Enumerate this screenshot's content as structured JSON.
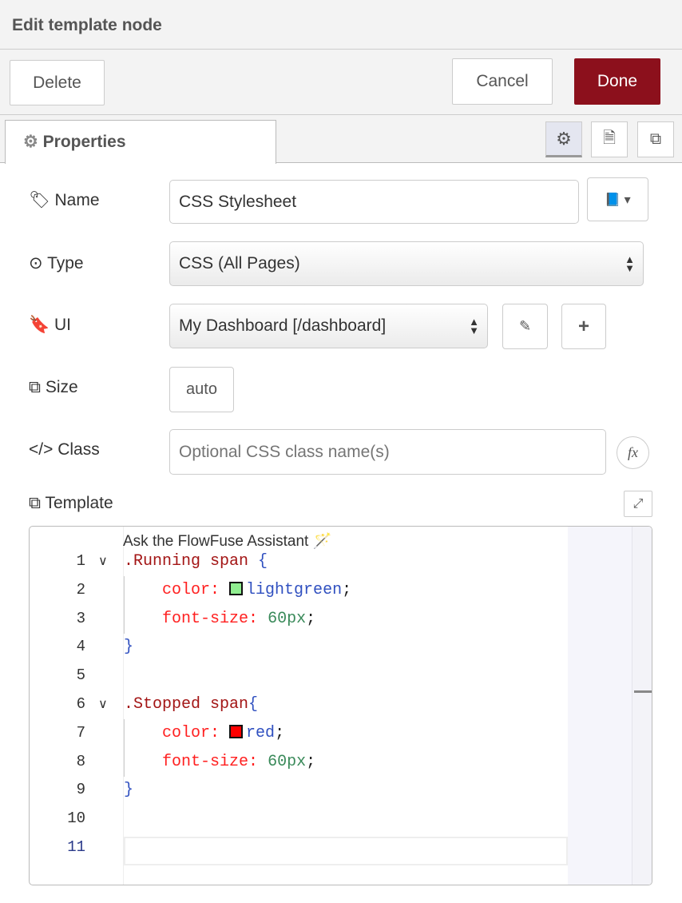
{
  "header": {
    "title": "Edit template node"
  },
  "toolbar": {
    "delete": "Delete",
    "cancel": "Cancel",
    "done": "Done"
  },
  "tabs": {
    "properties": "Properties"
  },
  "form": {
    "name_label": "Name",
    "name_value": "CSS Stylesheet",
    "type_label": "Type",
    "type_value": "CSS (All Pages)",
    "ui_label": "UI",
    "ui_value": "My Dashboard [/dashboard]",
    "size_label": "Size",
    "size_value": "auto",
    "class_label": "Class",
    "class_placeholder": "Optional CSS class name(s)",
    "template_label": "Template"
  },
  "editor": {
    "assistant": "Ask the FlowFuse Assistant",
    "line_numbers": [
      "1",
      "2",
      "3",
      "4",
      "5",
      "6",
      "7",
      "8",
      "9",
      "10",
      "11"
    ],
    "lines": [
      {
        "sel": ".Running span",
        "brace": " {"
      },
      {
        "prop": "color:",
        "swatch": "#90ee90",
        "val": "lightgreen",
        "end": ";"
      },
      {
        "prop": "font-size:",
        "num": "60px",
        "end": ";"
      },
      {
        "brace": "}"
      },
      {},
      {
        "sel": ".Stopped span",
        "brace": "{"
      },
      {
        "prop": "color:",
        "swatch": "#ff0000",
        "val": "red",
        "end": ";"
      },
      {
        "prop": "font-size:",
        "num": "60px",
        "end": ";"
      },
      {
        "brace": "}"
      },
      {},
      {}
    ]
  },
  "colors": {
    "done": "#8c101c",
    "selector": "#a31515",
    "property": "#ff2020",
    "number": "#3a8a5a",
    "value": "#3050c0"
  }
}
